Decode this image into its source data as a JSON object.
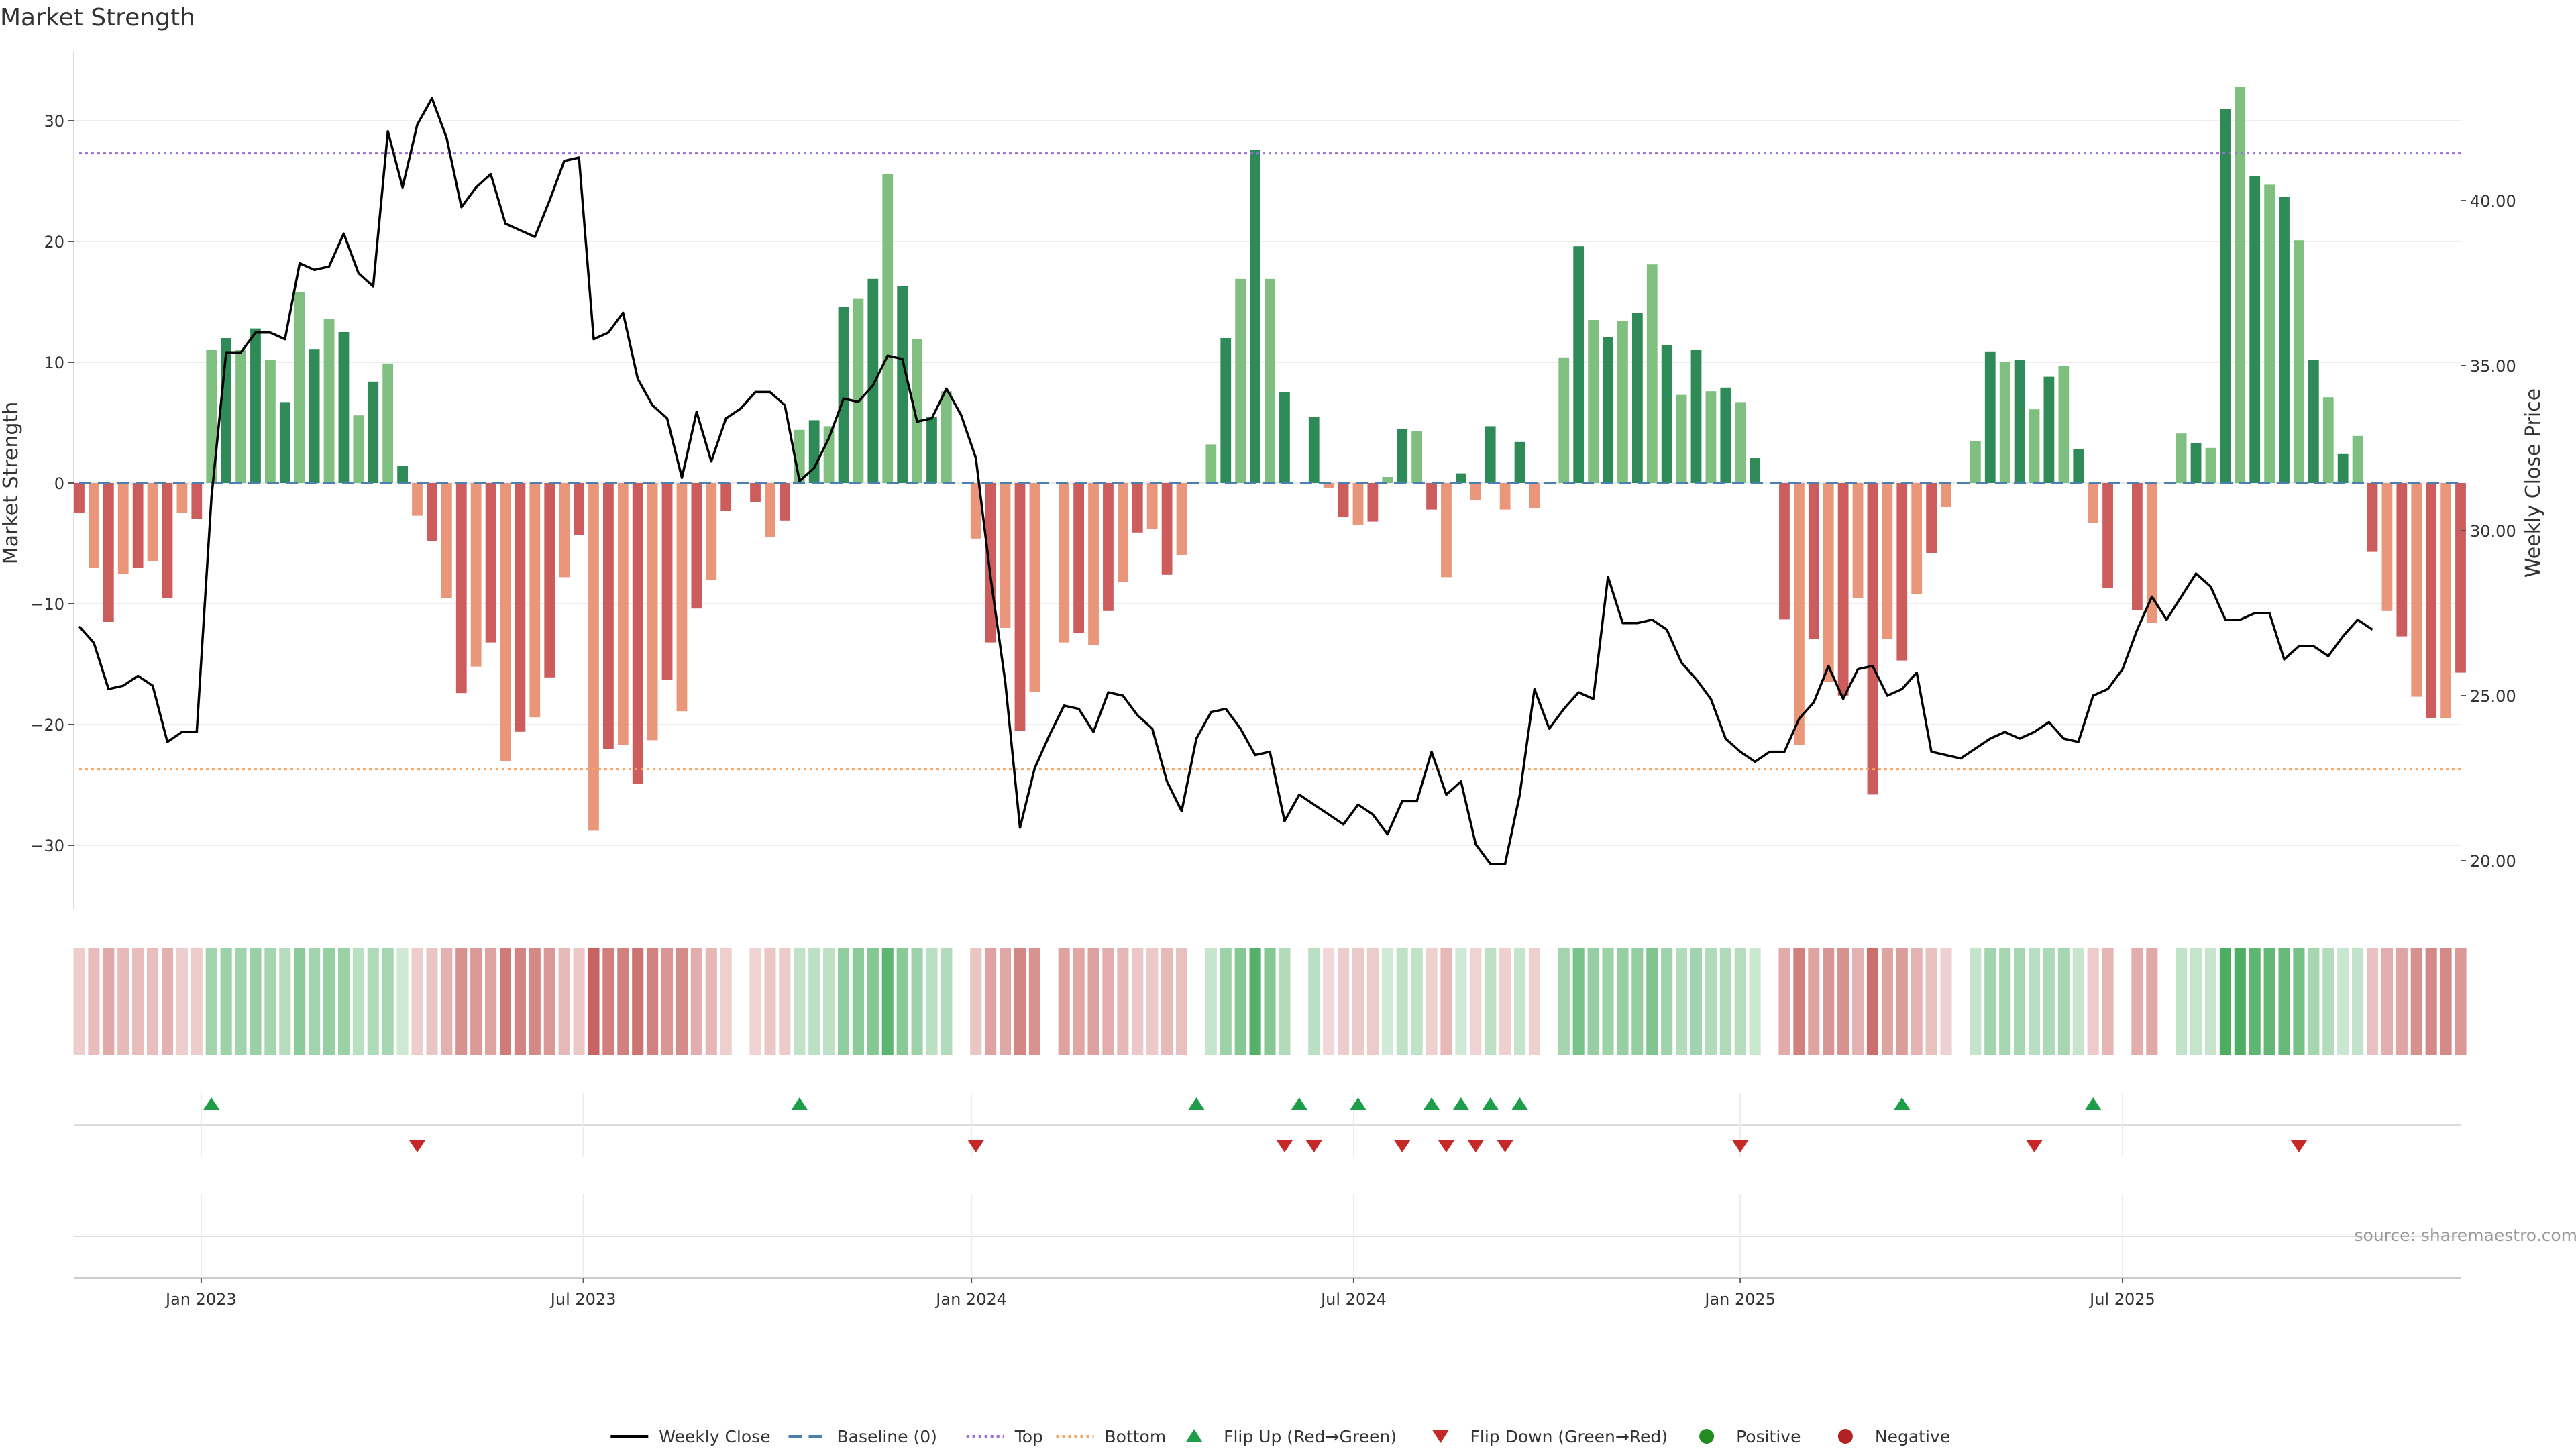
{
  "chart_data": {
    "type": "bar",
    "title": "Market Strength",
    "ylabel": "Market Strength",
    "y2label": "Weekly Close Price",
    "ylim": [
      -35,
      35
    ],
    "y2lim": [
      18.5,
      44.5
    ],
    "yticks": [
      30,
      20,
      10,
      0,
      -10,
      -20,
      -30
    ],
    "ytick_labels": [
      "30",
      "20",
      "10",
      "0",
      "−10",
      "−20",
      "−30"
    ],
    "y2ticks": [
      40,
      35,
      30,
      25,
      20
    ],
    "y2tick_labels": [
      "40.00",
      "35.00",
      "30.00",
      "25.00",
      "20.00"
    ],
    "top_line": 27.3,
    "bottom_line": -23.7,
    "baseline": 0,
    "x_start": "2022-10-28",
    "x_interval_days": 7,
    "x_tick_labels": [
      {
        "label": "Jan 2023",
        "week": 8.3
      },
      {
        "label": "Jul 2023",
        "week": 34.3
      },
      {
        "label": "Jan 2024",
        "week": 60.7
      },
      {
        "label": "Jul 2024",
        "week": 86.7
      },
      {
        "label": "Jan 2025",
        "week": 113.0
      },
      {
        "label": "Jul 2025",
        "week": 139.0
      }
    ],
    "series": [
      {
        "name": "Market Strength",
        "values": [
          -2.5,
          -7,
          -11.5,
          -7.5,
          -7,
          -6.5,
          -9.5,
          -2.5,
          -3,
          11,
          12,
          11,
          12.8,
          10.2,
          6.7,
          15.8,
          11.1,
          13.6,
          12.5,
          5.6,
          8.4,
          9.9,
          1.4,
          -2.7,
          -4.8,
          -9.5,
          -17.4,
          -15.2,
          -13.2,
          -23,
          -20.6,
          -19.4,
          -16.1,
          -7.8,
          -4.3,
          -28.8,
          -22,
          -21.7,
          -24.9,
          -21.3,
          -16.3,
          -18.9,
          -10.4,
          -8,
          -2.3,
          0,
          -1.6,
          -4.5,
          -3.1,
          4.4,
          5.2,
          4.7,
          14.6,
          15.3,
          16.9,
          25.6,
          16.3,
          11.9,
          5.5,
          7.6,
          0,
          -4.6,
          -13.2,
          -12,
          -20.5,
          -17.3,
          0,
          -13.2,
          -12.4,
          -13.4,
          -10.6,
          -8.2,
          -4.1,
          -3.8,
          -7.6,
          -6,
          0,
          3.2,
          12,
          16.9,
          27.6,
          16.9,
          7.5,
          0,
          5.5,
          -0.4,
          -2.8,
          -3.5,
          -3.2,
          0.5,
          4.5,
          4.3,
          -2.2,
          -7.8,
          0.8,
          -1.4,
          4.7,
          -2.2,
          3.4,
          -2.1,
          0,
          10.4,
          19.6,
          13.5,
          12.1,
          13.4,
          14.1,
          18.1,
          11.4,
          7.3,
          11,
          7.6,
          7.9,
          6.7,
          2.1,
          0,
          -11.3,
          -21.7,
          -12.9,
          -16.5,
          -17.6,
          -9.5,
          -25.8,
          -12.9,
          -14.7,
          -9.2,
          -5.8,
          -2,
          0,
          3.5,
          10.9,
          10,
          10.2,
          6.1,
          8.8,
          9.7,
          2.8,
          -3.3,
          -8.7,
          0,
          -10.5,
          -11.6,
          0,
          4.1,
          3.3,
          2.9,
          31,
          32.8,
          25.4,
          24.7,
          23.7,
          20.1,
          10.2,
          7.1,
          2.4,
          3.9,
          -5.7,
          -10.6,
          -12.7,
          -17.7,
          -19.5,
          -19.5,
          -15.7
        ]
      },
      {
        "name": "Weekly Close",
        "values": [
          27.1,
          26.6,
          25.2,
          25.3,
          25.6,
          25.3,
          23.6,
          23.9,
          23.9,
          31.0,
          35.4,
          35.4,
          36.0,
          36.0,
          35.8,
          38.1,
          37.9,
          38.0,
          39.0,
          37.8,
          37.4,
          42.1,
          40.4,
          42.3,
          43.1,
          41.9,
          39.8,
          40.4,
          40.8,
          39.3,
          39.1,
          38.9,
          40.0,
          41.2,
          41.3,
          35.8,
          36.0,
          36.6,
          34.6,
          33.8,
          33.4,
          31.6,
          33.6,
          32.1,
          33.4,
          33.7,
          34.2,
          34.2,
          33.8,
          31.5,
          31.9,
          32.8,
          34.0,
          33.9,
          34.4,
          35.3,
          35.2,
          33.3,
          33.4,
          34.3,
          33.5,
          32.2,
          28.6,
          25.4,
          21.0,
          22.8,
          23.8,
          24.7,
          24.6,
          23.9,
          25.1,
          25.0,
          24.4,
          24.0,
          22.4,
          21.5,
          23.7,
          24.5,
          24.6,
          24.0,
          23.2,
          23.3,
          21.2,
          22.0,
          21.7,
          21.4,
          21.1,
          21.7,
          21.4,
          20.8,
          21.8,
          21.8,
          23.3,
          22.0,
          22.4,
          20.5,
          19.9,
          19.9,
          22.0,
          25.2,
          24.0,
          24.6,
          25.1,
          24.9,
          28.6,
          27.2,
          27.2,
          27.3,
          27.0,
          26.0,
          25.5,
          24.9,
          23.7,
          23.3,
          23.0,
          23.3,
          23.3,
          24.3,
          24.8,
          25.9,
          24.9,
          25.8,
          25.9,
          25.0,
          25.2,
          25.7,
          23.3,
          23.2,
          23.1,
          23.4,
          23.7,
          23.9,
          23.7,
          23.9,
          24.2,
          23.7,
          23.6,
          25.0,
          25.2,
          25.8,
          27.0,
          28.0,
          27.3,
          28.0,
          28.7,
          28.3,
          27.3,
          27.3,
          27.5,
          27.5,
          26.1,
          26.5,
          26.5,
          26.2,
          26.8,
          27.3,
          27.0
        ]
      }
    ],
    "flip_up_weeks": [
      9,
      49,
      76,
      83,
      87,
      92,
      94,
      96,
      98,
      124,
      137
    ],
    "flip_down_weeks": [
      23,
      61,
      82,
      84,
      90,
      93,
      95,
      97,
      113,
      133,
      151
    ],
    "colors": {
      "pos_dark": "#2e8b57",
      "pos_light": "#7fbf7f",
      "neg_dark": "#cd5c5c",
      "neg_light": "#e9967a",
      "price": "#000000",
      "baseline": "#4a7fb0",
      "top": "#9370db",
      "bottom": "#f4a460",
      "flip_up": "#1e9e4a",
      "flip_down": "#c62828",
      "positive": "#228b22",
      "negative": "#b22222",
      "heat_pos": "#3aa552",
      "heat_neg": "#c0504d"
    },
    "legend": [
      {
        "label": "Weekly Close",
        "kind": "line",
        "color": "#000000"
      },
      {
        "label": "Baseline (0)",
        "kind": "dash",
        "color": "#4a7fb0"
      },
      {
        "label": "Top",
        "kind": "dot",
        "color": "#9370db"
      },
      {
        "label": "Bottom",
        "kind": "dot",
        "color": "#f4a460"
      },
      {
        "label": "Flip Up (Red→Green)",
        "kind": "tri-up",
        "color": "#1e9e4a"
      },
      {
        "label": "Flip Down (Green→Red)",
        "kind": "tri-down",
        "color": "#c62828"
      },
      {
        "label": "Positive",
        "kind": "dot-marker",
        "color": "#228b22"
      },
      {
        "label": "Negative",
        "kind": "dot-marker",
        "color": "#b22222"
      }
    ],
    "source": "source: sharemaestro.com",
    "legend_placement": "bottom-center"
  }
}
